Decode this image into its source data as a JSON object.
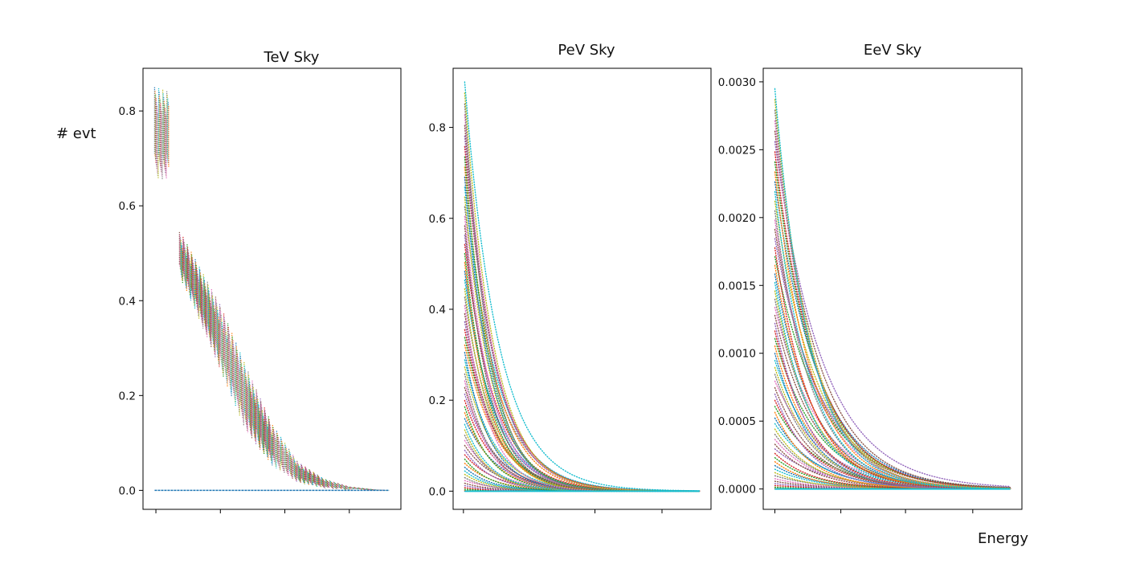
{
  "figure": {
    "ylabel": "# evt",
    "xlabel": "Energy"
  },
  "chart_data": [
    {
      "type": "scatter",
      "title": "TeV Sky",
      "ylabel": "# evt",
      "xlabel": "",
      "ylim": [
        -0.04,
        0.89
      ],
      "yticks": [
        0.0,
        0.2,
        0.4,
        0.6,
        0.8
      ],
      "ytick_labels": [
        "0.0",
        "0.2",
        "0.4",
        "0.6",
        "0.8"
      ],
      "grid": false,
      "series_count": "many",
      "envelope": {
        "x": [
          0.05,
          0.1,
          0.14,
          0.2,
          0.3,
          0.4,
          0.5,
          0.6,
          0.7,
          0.8,
          0.9,
          0.96
        ],
        "upper": [
          0.85,
          0.84,
          0.55,
          0.49,
          0.39,
          0.26,
          0.14,
          0.06,
          0.025,
          0.008,
          0.002,
          0.0
        ],
        "lower": [
          0.65,
          0.65,
          0.45,
          0.38,
          0.25,
          0.12,
          0.05,
          0.015,
          0.004,
          0.001,
          0.0,
          0.0
        ]
      },
      "baseline": {
        "y": 0.0
      }
    },
    {
      "type": "scatter",
      "title": "PeV Sky",
      "xlabel": "",
      "ylabel": "",
      "ylim": [
        -0.04,
        0.93
      ],
      "yticks": [
        0.0,
        0.2,
        0.4,
        0.6,
        0.8
      ],
      "ytick_labels": [
        "0.0",
        "0.2",
        "0.4",
        "0.6",
        "0.8"
      ],
      "grid": false,
      "series_count": "many",
      "peak": 0.9,
      "decay": 8.5
    },
    {
      "type": "scatter",
      "title": "EeV Sky",
      "xlabel": "Energy",
      "ylabel": "",
      "ylim": [
        -0.00015,
        0.0031
      ],
      "yticks": [
        0.0,
        0.0005,
        0.001,
        0.0015,
        0.002,
        0.0025,
        0.003
      ],
      "ytick_labels": [
        "0.0000",
        "0.0005",
        "0.0010",
        "0.0015",
        "0.0020",
        "0.0025",
        "0.0030"
      ],
      "grid": false,
      "series_count": "many",
      "peak": 0.00295,
      "decay": 6.0
    }
  ],
  "colors": [
    "#1f77b4",
    "#ff7f0e",
    "#2ca02c",
    "#d62728",
    "#9467bd",
    "#8c564b",
    "#e377c2",
    "#7f7f7f",
    "#bcbd22",
    "#17becf"
  ]
}
